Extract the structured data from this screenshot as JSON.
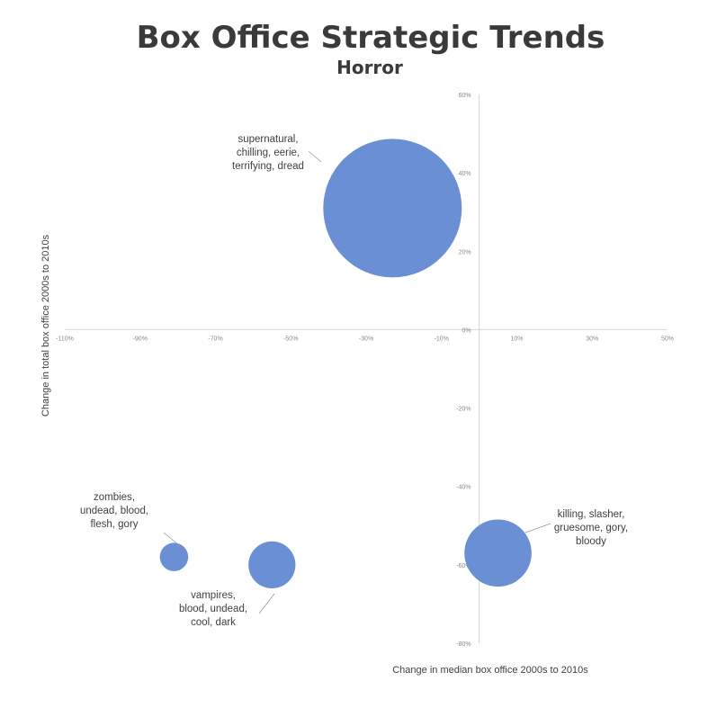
{
  "chart_data": {
    "type": "bubble",
    "title": "Box Office Strategic Trends",
    "subtitle": "Horror",
    "xlabel": "Change in median box office 2000s to 2010s",
    "ylabel": "Change in total box office 2000s to 2010s",
    "xlim": [
      -110,
      50
    ],
    "ylim": [
      -80,
      60
    ],
    "x_ticks": [
      "-110%",
      "-90%",
      "-70%",
      "-50%",
      "-30%",
      "-10%",
      "10%",
      "30%",
      "50%"
    ],
    "y_ticks": [
      "60%",
      "40%",
      "20%",
      "0%",
      "-20%",
      "-40%",
      "-60%",
      "-80%"
    ],
    "grid": false,
    "legend": "none",
    "bubble_color": "#6a8fd4",
    "series": [
      {
        "x": -23,
        "y": 31,
        "size": 100,
        "label": [
          "supernatural,",
          "chilling, eerie,",
          "terrifying, dread"
        ]
      },
      {
        "x": -81,
        "y": -58,
        "size": 4.2,
        "label": [
          "zombies,",
          "undead, blood,",
          "flesh, gory"
        ]
      },
      {
        "x": -55,
        "y": -60,
        "size": 11.5,
        "label": [
          "vampires,",
          "blood, undead,",
          "cool, dark"
        ]
      },
      {
        "x": 5,
        "y": -57,
        "size": 23.5,
        "label": [
          "killing, slasher,",
          "gruesome, gory,",
          "bloody"
        ]
      }
    ]
  }
}
